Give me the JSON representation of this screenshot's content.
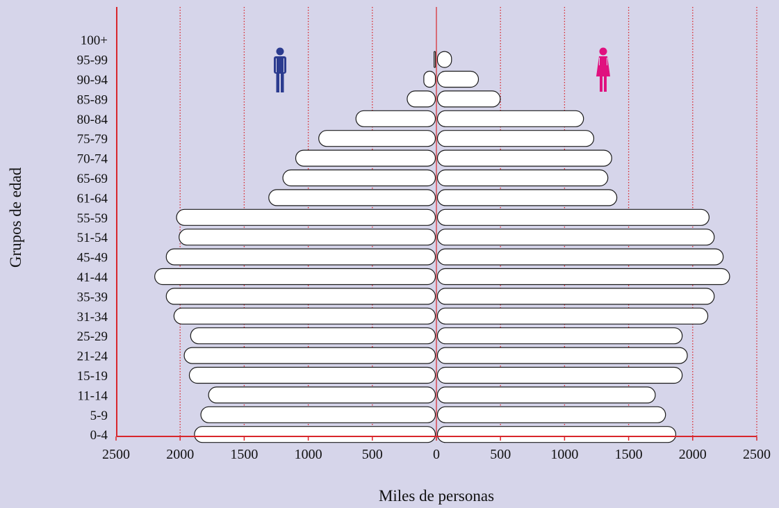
{
  "chart_data": {
    "type": "bar",
    "subtype": "population-pyramid",
    "xlabel": "Miles de personas",
    "ylabel": "Grupos de edad",
    "xlim": [
      -2500,
      2500
    ],
    "x_ticks": [
      -2500,
      -2000,
      -1500,
      -1000,
      -500,
      0,
      500,
      1000,
      1500,
      2000,
      2500
    ],
    "x_tick_labels": [
      "2500",
      "2000",
      "1500",
      "1000",
      "500",
      "0",
      "500",
      "1000",
      "1500",
      "2000",
      "2500"
    ],
    "grid": "vertical dotted",
    "categories": [
      "0-4",
      "5-9",
      "11-14",
      "15-19",
      "21-24",
      "25-29",
      "31-34",
      "35-39",
      "41-44",
      "45-49",
      "51-54",
      "55-59",
      "61-64",
      "65-69",
      "70-74",
      "75-79",
      "80-84",
      "85-89",
      "90-94",
      "95-99",
      "100+"
    ],
    "series": [
      {
        "side": "left",
        "icon": "male-icon",
        "color": "#2b3b8f",
        "values": [
          1880,
          1830,
          1770,
          1920,
          1960,
          1910,
          2040,
          2100,
          2190,
          2100,
          2000,
          2020,
          1300,
          1190,
          1090,
          910,
          620,
          220,
          90,
          10,
          0
        ]
      },
      {
        "side": "right",
        "icon": "female-icon",
        "color": "#e0117f",
        "values": [
          1860,
          1780,
          1700,
          1910,
          1950,
          1910,
          2110,
          2160,
          2280,
          2230,
          2160,
          2120,
          1400,
          1330,
          1360,
          1220,
          1140,
          490,
          320,
          110,
          0
        ]
      }
    ],
    "colors": {
      "background": "#d6d5ea",
      "axis": "#d8262b",
      "grid": "#d8262b",
      "bar_fill": "#ffffff",
      "bar_stroke": "#1a1a1a"
    }
  }
}
